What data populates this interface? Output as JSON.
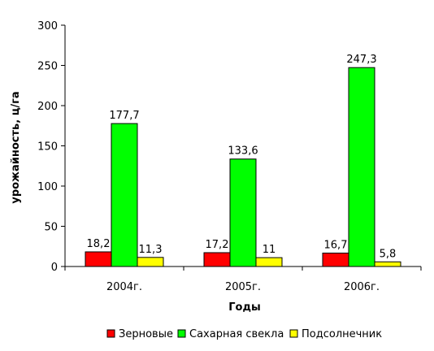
{
  "chart_data": {
    "type": "bar",
    "categories": [
      "2004г.",
      "2005г.",
      "2006г."
    ],
    "series": [
      {
        "name": "Зерновые",
        "color": "#ff0000",
        "values": [
          18.2,
          17.2,
          16.7
        ],
        "labels": [
          "18,2",
          "17,2",
          "16,7"
        ]
      },
      {
        "name": "Сахарная свекла",
        "color": "#00ff00",
        "values": [
          177.7,
          133.6,
          247.3
        ],
        "labels": [
          "177,7",
          "133,6",
          "247,3"
        ]
      },
      {
        "name": "Подсолнечник",
        "color": "#ffff00",
        "values": [
          11.3,
          11,
          5.8
        ],
        "labels": [
          "11,3",
          "11",
          "5,8"
        ]
      }
    ],
    "xlabel": "Годы",
    "ylabel": "урожайность, ц/га",
    "ylim": [
      0,
      300
    ],
    "yticks": [
      "0",
      "50",
      "100",
      "150",
      "200",
      "250",
      "300"
    ],
    "grid": false,
    "legend_position": "bottom"
  }
}
